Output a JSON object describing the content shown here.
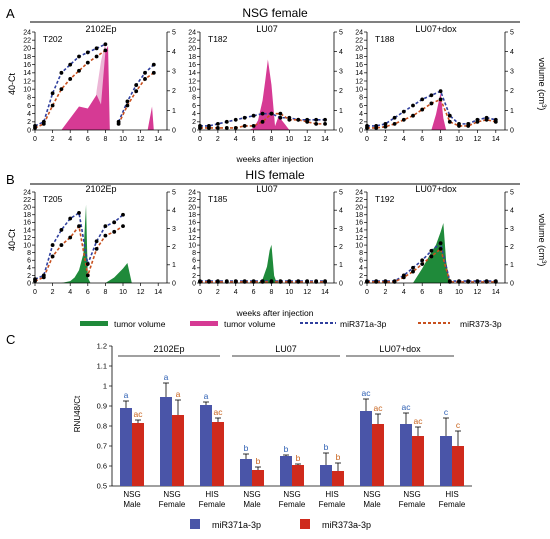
{
  "panel_labels": {
    "a": "A",
    "b": "B",
    "c": "C"
  },
  "rows": {
    "nsg": {
      "title": "NSG female"
    },
    "his": {
      "title": "HIS female"
    }
  },
  "axes": {
    "left_label": "40-Ct",
    "right_label": "volume (cm",
    "right_label_sup": "3",
    "right_label_close": ")",
    "x_label": "weeks after injection",
    "left_ticks": [
      0,
      2,
      4,
      6,
      8,
      10,
      12,
      14,
      16,
      18,
      20,
      22,
      24
    ],
    "right_ticks": [
      0,
      1,
      2,
      3,
      4,
      5
    ],
    "x_ticks": [
      0,
      2,
      4,
      6,
      8,
      10,
      12,
      14
    ]
  },
  "colors": {
    "nsg_volume": "#d63a94",
    "nsg_volume_light": "#ecb6d6",
    "his_volume": "#1f8a3a",
    "mir371": "#2f3f9e",
    "mir373": "#c8501e",
    "bar371": "#4a55a8",
    "bar373": "#cf2a1c",
    "stat_blue": "#2d5fb3",
    "stat_orange": "#c8641e"
  },
  "legend_top": {
    "tumor_volume_green": "tumor volume",
    "tumor_volume_pink": "tumor volume",
    "mir371": "miR371a-3p",
    "mir373": "miR373-3p"
  },
  "legend_bottom": {
    "mir371": "miR371a-3p",
    "mir373": "miR373a-3p"
  },
  "chart_data": [
    {
      "type": "line",
      "id": "nsg_2102ep",
      "title": "2102Ep",
      "mouse": "T202",
      "x": [
        0,
        1,
        2,
        3,
        4,
        5,
        6,
        7,
        8,
        8.5,
        9.5,
        10.5,
        11.5,
        12.5,
        13.5
      ],
      "series": [
        {
          "name": "miR371a-3p",
          "values": [
            1,
            2,
            9,
            14,
            16,
            18,
            19,
            20,
            21,
            null,
            2,
            7,
            11,
            14,
            16
          ]
        },
        {
          "name": "miR373-3p",
          "values": [
            0.5,
            1.5,
            6,
            10,
            12.5,
            14.5,
            16.5,
            18,
            19.5,
            null,
            1.5,
            6,
            9.5,
            12.5,
            14
          ]
        }
      ],
      "volume": {
        "x": [
          3,
          4,
          5,
          6,
          7,
          7.5,
          8,
          8.3,
          8.5,
          12.8,
          13.3,
          13.5
        ],
        "values": [
          0,
          0.6,
          1.2,
          1.1,
          1.8,
          1.3,
          4,
          4.3,
          0,
          0,
          1.2,
          0
        ]
      },
      "volume_light": {
        "x": [
          6.5,
          7,
          7.5,
          8,
          8.5
        ],
        "values": [
          0,
          2,
          3.5,
          4.5,
          0
        ]
      },
      "xlim": [
        0,
        15
      ],
      "ylim": [
        0,
        24
      ],
      "y2lim": [
        0,
        5
      ]
    },
    {
      "type": "line",
      "id": "nsg_lu07",
      "title": "LU07",
      "mouse": "T182",
      "x": [
        0,
        1,
        2,
        3,
        4,
        5,
        6,
        7,
        8,
        9,
        10,
        11,
        12,
        13,
        14
      ],
      "series": [
        {
          "name": "miR371a-3p",
          "values": [
            1,
            1,
            1.5,
            2,
            2.5,
            3,
            3.5,
            4,
            4,
            3,
            3,
            2.5,
            2.5,
            2.5,
            2.5
          ]
        },
        {
          "name": "miR373-3p",
          "values": [
            0.5,
            0.5,
            0.5,
            0.5,
            0.5,
            1,
            1,
            2,
            4,
            4,
            2.5,
            2.5,
            2,
            1.5,
            1.5
          ]
        }
      ],
      "volume": {
        "x": [
          5.5,
          6,
          6.5,
          7,
          7.3,
          7.6,
          8,
          8.4,
          8.8,
          9.5,
          10
        ],
        "values": [
          0,
          0.1,
          0.5,
          1.5,
          2.5,
          3.6,
          2.3,
          0.2,
          0.7,
          0.3,
          0
        ]
      },
      "xlim": [
        0,
        15
      ],
      "ylim": [
        0,
        24
      ],
      "y2lim": [
        0,
        5
      ]
    },
    {
      "type": "line",
      "id": "nsg_lu07dox",
      "title": "LU07+dox",
      "mouse": "T188",
      "x": [
        0,
        1,
        2,
        3,
        4,
        5,
        6,
        7,
        8,
        9,
        10,
        11,
        12,
        13,
        14
      ],
      "series": [
        {
          "name": "miR371a-3p",
          "values": [
            1,
            1,
            1.5,
            3,
            4.5,
            6,
            7.5,
            8.5,
            9.5,
            3.5,
            1.5,
            1.5,
            2.5,
            3,
            2.5
          ]
        },
        {
          "name": "miR373-3p",
          "values": [
            0.5,
            0.5,
            0.8,
            1.5,
            2.5,
            3.5,
            5,
            6.5,
            7.5,
            2,
            1,
            1,
            2,
            2.5,
            2
          ]
        }
      ],
      "volume": {
        "x": [
          7,
          7.5,
          8,
          8.3,
          8.6
        ],
        "values": [
          0,
          0.8,
          1.9,
          0.6,
          0
        ]
      },
      "xlim": [
        0,
        15
      ],
      "ylim": [
        0,
        24
      ],
      "y2lim": [
        0,
        5
      ]
    },
    {
      "type": "line",
      "id": "his_2102ep",
      "title": "2102Ep",
      "mouse": "T205",
      "x": [
        0,
        1,
        2,
        3,
        4,
        5,
        6,
        7,
        8,
        9,
        10
      ],
      "series": [
        {
          "name": "miR371a-3p",
          "values": [
            1,
            2,
            10,
            14,
            17,
            18.5,
            5,
            11,
            15,
            16,
            18
          ]
        },
        {
          "name": "miR373-3p",
          "values": [
            0.5,
            1.5,
            7,
            10,
            12,
            15,
            2,
            9,
            12.5,
            13.5,
            15
          ]
        }
      ],
      "volume": {
        "x": [
          3,
          4,
          4.5,
          5,
          5.5,
          5.8,
          6,
          6.3,
          8,
          9,
          10,
          10.5,
          11
        ],
        "values": [
          0,
          0.1,
          0.3,
          0.7,
          1.6,
          4.3,
          0.3,
          0,
          0,
          0.3,
          0.8,
          1.1,
          0
        ]
      },
      "xlim": [
        0,
        15
      ],
      "ylim": [
        0,
        24
      ],
      "y2lim": [
        0,
        5
      ]
    },
    {
      "type": "line",
      "id": "his_lu07",
      "title": "LU07",
      "mouse": "T185",
      "x": [
        0,
        1,
        2,
        3,
        4,
        5,
        6,
        7,
        8,
        9,
        10,
        11,
        12,
        13,
        14
      ],
      "series": [
        {
          "name": "miR371a-3p",
          "values": [
            0.5,
            0.5,
            0.5,
            0.5,
            0.5,
            0.5,
            0.5,
            0.5,
            0.5,
            0.5,
            0.5,
            0.5,
            0.5,
            0.5,
            0.5
          ]
        },
        {
          "name": "miR373-3p",
          "values": [
            0.3,
            0.3,
            0.3,
            0.3,
            0.3,
            0.3,
            0.3,
            0.3,
            0.3,
            0.3,
            0.3,
            0.3,
            0.3,
            0.3,
            0.3
          ]
        }
      ],
      "volume": {
        "x": [
          6.5,
          7,
          7.5,
          7.8,
          8,
          8.3,
          8.6
        ],
        "values": [
          0,
          0.2,
          0.9,
          1.8,
          2.1,
          0.4,
          0
        ]
      },
      "xlim": [
        0,
        15
      ],
      "ylim": [
        0,
        24
      ],
      "y2lim": [
        0,
        5
      ]
    },
    {
      "type": "line",
      "id": "his_lu07dox",
      "title": "LU07+dox",
      "mouse": "T192",
      "x": [
        0,
        1,
        2,
        3,
        4,
        5,
        6,
        7,
        8,
        9,
        10,
        11,
        12,
        13,
        14
      ],
      "series": [
        {
          "name": "miR371a-3p",
          "values": [
            0.5,
            0.5,
            0.5,
            0.5,
            2,
            4,
            6,
            8.5,
            10.5,
            0.5,
            0.5,
            0.5,
            0.5,
            0.5,
            0.5
          ]
        },
        {
          "name": "miR373-3p",
          "values": [
            0.3,
            0.3,
            0.3,
            0.3,
            1.5,
            3,
            5,
            7,
            9,
            0.3,
            0.3,
            0.3,
            0.3,
            0.3,
            0.3
          ]
        }
      ],
      "volume": {
        "x": [
          5,
          6,
          7,
          7.5,
          8,
          8.3,
          8.6,
          9
        ],
        "values": [
          0,
          0.8,
          1.7,
          2.1,
          2.8,
          3.3,
          1.2,
          0
        ]
      },
      "xlim": [
        0,
        15
      ],
      "ylim": [
        0,
        24
      ],
      "y2lim": [
        0,
        5
      ]
    },
    {
      "type": "bar",
      "id": "rnu48",
      "ylabel": "RNU48/Ct",
      "ylim": [
        0.5,
        1.2
      ],
      "yticks": [
        "0.5",
        "0.6",
        "0.7",
        "0.8",
        "0.9",
        "1",
        "1.1",
        "1.2"
      ],
      "groups": [
        {
          "label": "2102Ep",
          "categories": [
            "NSG\nMale",
            "NSG\nFemale",
            "HIS\nFemale"
          ]
        },
        {
          "label": "LU07",
          "categories": [
            "NSG\nMale",
            "NSG\nFemale",
            "HIS\nFemale"
          ]
        },
        {
          "label": "LU07+dox",
          "categories": [
            "NSG\nMale",
            "NSG\nFemale",
            "HIS\nFemale"
          ]
        }
      ],
      "categories": [
        "NSG Male",
        "NSG Female",
        "HIS Female",
        "NSG Male",
        "NSG Female",
        "HIS Female",
        "NSG Male",
        "NSG Female",
        "HIS Female"
      ],
      "series": [
        {
          "name": "miR371a-3p",
          "values": [
            0.89,
            0.945,
            0.905,
            0.635,
            0.65,
            0.605,
            0.875,
            0.81,
            0.75
          ],
          "errors": [
            0.035,
            0.07,
            0.015,
            0.025,
            0.005,
            0.06,
            0.06,
            0.055,
            0.09
          ],
          "letters": [
            "a",
            "a",
            "a",
            "b",
            "b",
            "b",
            "ac",
            "ac",
            "c"
          ]
        },
        {
          "name": "miR373a-3p",
          "values": [
            0.815,
            0.855,
            0.82,
            0.58,
            0.605,
            0.575,
            0.81,
            0.75,
            0.7
          ],
          "errors": [
            0.015,
            0.075,
            0.02,
            0.015,
            0.005,
            0.04,
            0.05,
            0.045,
            0.075
          ],
          "letters": [
            "ac",
            "a",
            "ac",
            "b",
            "b",
            "b",
            "ac",
            "ac",
            "c"
          ]
        }
      ]
    }
  ]
}
